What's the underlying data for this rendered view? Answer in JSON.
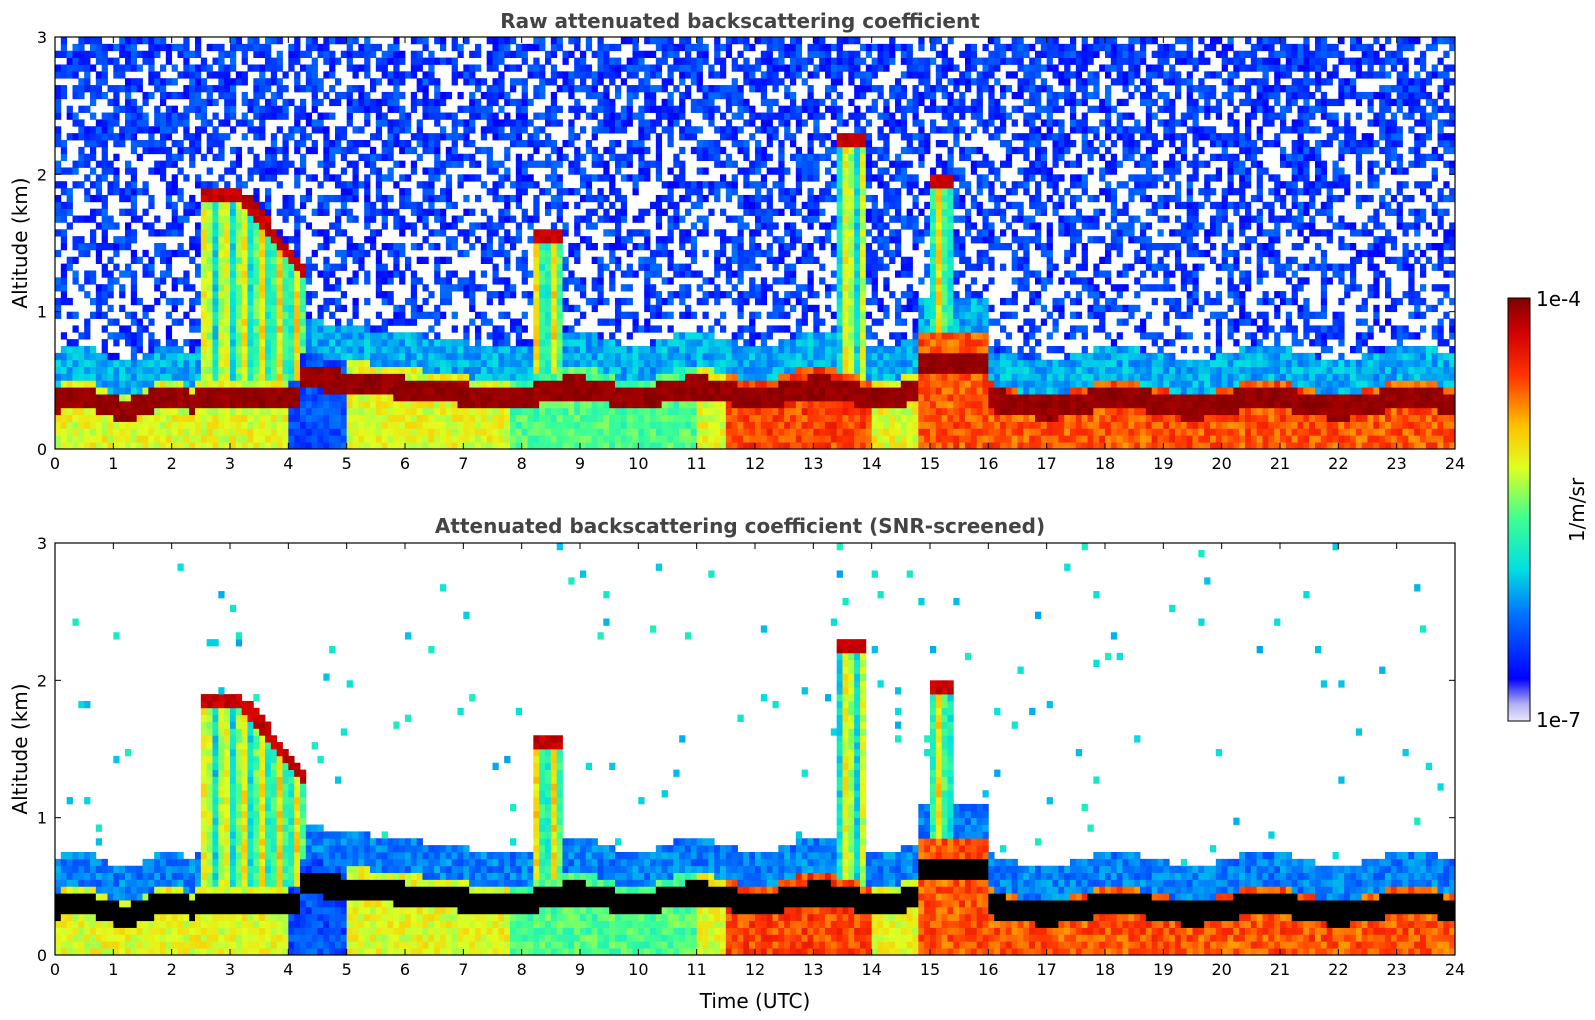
{
  "chart_data": [
    {
      "type": "heatmap",
      "title": "Raw attenuated backscattering coefficient",
      "xlabel": "",
      "ylabel": "Altitude (km)",
      "xlim": [
        0,
        24
      ],
      "ylim": [
        0,
        3
      ],
      "x_ticks": [
        "0",
        "1",
        "2",
        "3",
        "4",
        "5",
        "6",
        "7",
        "8",
        "9",
        "10",
        "11",
        "12",
        "13",
        "14",
        "15",
        "16",
        "17",
        "18",
        "19",
        "20",
        "21",
        "22",
        "23",
        "24"
      ],
      "y_ticks": [
        "0",
        "1",
        "2",
        "3"
      ],
      "screened": false
    },
    {
      "type": "heatmap",
      "title": "Attenuated backscattering coefficient (SNR-screened)",
      "xlabel": "Time (UTC)",
      "ylabel": "Altitude (km)",
      "xlim": [
        0,
        24
      ],
      "ylim": [
        0,
        3
      ],
      "x_ticks": [
        "0",
        "1",
        "2",
        "3",
        "4",
        "5",
        "6",
        "7",
        "8",
        "9",
        "10",
        "11",
        "12",
        "13",
        "14",
        "15",
        "16",
        "17",
        "18",
        "19",
        "20",
        "21",
        "22",
        "23",
        "24"
      ],
      "y_ticks": [
        "0",
        "1",
        "2",
        "3"
      ],
      "screened": true
    }
  ],
  "colorbar": {
    "label": "1/m/sr",
    "max_label": "1e-4",
    "min_label": "1e-7",
    "colormap": "jet"
  },
  "colors": {
    "title": "#444444",
    "axis": "#000000",
    "background": "#ffffff"
  }
}
